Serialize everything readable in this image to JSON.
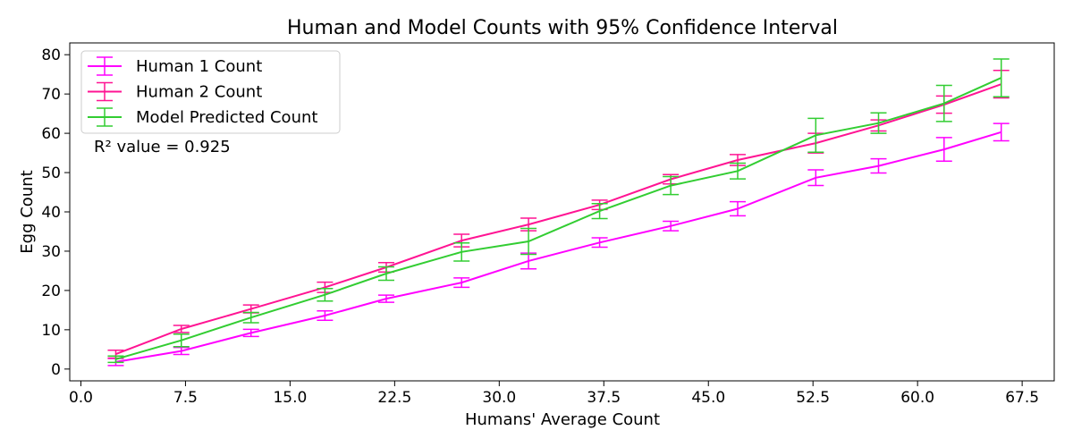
{
  "chart_data": {
    "type": "line",
    "title": "Human and Model Counts with 95% Confidence Interval",
    "xlabel": "Humans' Average Count",
    "ylabel": "Egg Count",
    "xlim": [
      -0.8,
      69.8
    ],
    "ylim": [
      -3,
      83
    ],
    "xticks": [
      0.0,
      7.5,
      15.0,
      22.5,
      30.0,
      37.5,
      45.0,
      52.5,
      60.0,
      67.5
    ],
    "xtick_labels": [
      "0.0",
      "7.5",
      "15.0",
      "22.5",
      "30.0",
      "37.5",
      "45.0",
      "52.5",
      "60.0",
      "67.5"
    ],
    "yticks": [
      0,
      10,
      20,
      30,
      40,
      50,
      60,
      70,
      80
    ],
    "ytick_labels": [
      "0",
      "10",
      "20",
      "30",
      "40",
      "50",
      "60",
      "70",
      "80"
    ],
    "x": [
      2.5,
      7.2,
      12.2,
      17.5,
      21.9,
      27.3,
      32.1,
      37.2,
      42.3,
      47.1,
      52.7,
      57.2,
      61.9,
      66.0
    ],
    "series": [
      {
        "name": "Human 1 Count",
        "color": "#ff00ff",
        "values": [
          1.8,
          4.6,
          9.2,
          13.6,
          17.9,
          22.0,
          27.5,
          32.2,
          36.4,
          40.8,
          48.7,
          51.7,
          55.9,
          60.3
        ],
        "err": [
          0.9,
          0.9,
          0.9,
          1.2,
          0.9,
          1.2,
          2.0,
          1.2,
          1.2,
          1.8,
          2.0,
          1.8,
          3.0,
          2.2
        ]
      },
      {
        "name": "Human 2 Count",
        "color": "#ff1493",
        "values": [
          3.8,
          10.2,
          15.3,
          20.8,
          25.9,
          32.7,
          36.8,
          41.8,
          48.3,
          53.2,
          57.5,
          62.0,
          67.3,
          72.5
        ],
        "err": [
          1.0,
          0.9,
          1.0,
          1.3,
          1.2,
          1.6,
          1.6,
          1.2,
          1.2,
          1.4,
          2.5,
          1.4,
          2.2,
          3.5
        ]
      },
      {
        "name": "Model Predicted Count",
        "color": "#32cd32",
        "values": [
          2.5,
          7.3,
          13.1,
          18.9,
          24.3,
          29.8,
          32.5,
          40.2,
          46.7,
          50.4,
          59.5,
          62.6,
          67.6,
          74.1
        ],
        "err": [
          0.8,
          1.6,
          1.3,
          1.6,
          1.7,
          2.3,
          3.3,
          1.9,
          2.3,
          2.0,
          4.3,
          2.6,
          4.6,
          4.8
        ]
      }
    ],
    "legend_position": "top-left",
    "annotation": "R² value = 0.925",
    "grid": false
  }
}
